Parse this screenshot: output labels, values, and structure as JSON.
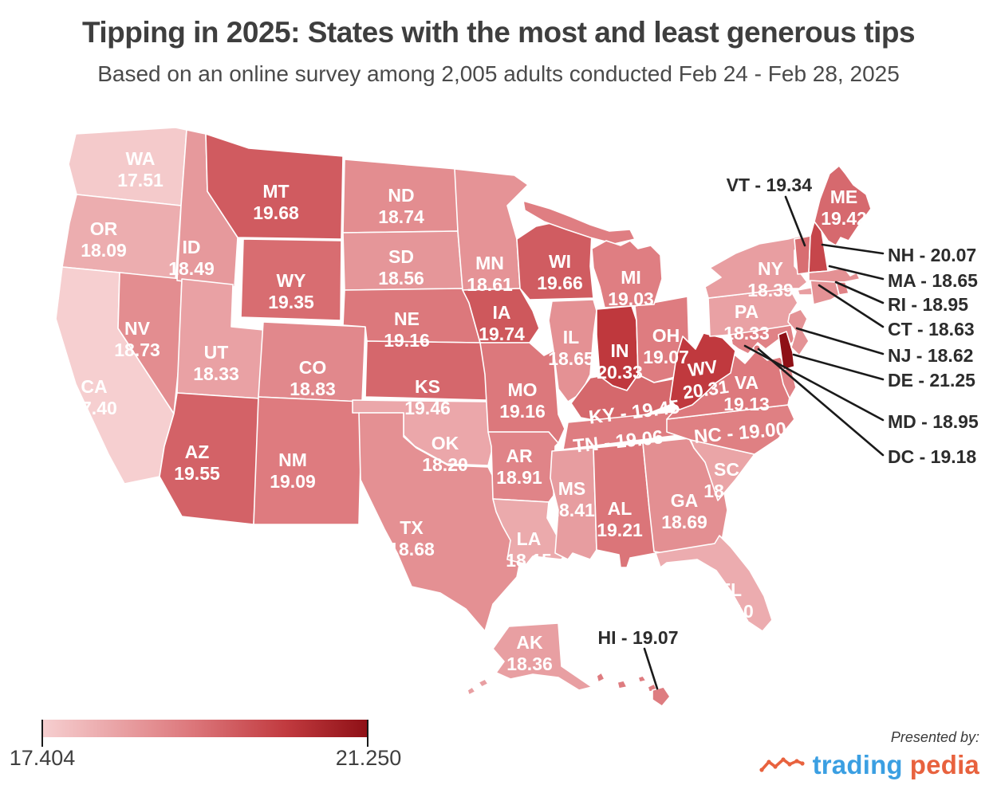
{
  "title": "Tipping in 2025: States with the most and least generous tips",
  "subtitle": "Based on an online survey among 2,005 adults conducted Feb 24 - Feb 28, 2025",
  "legend": {
    "min_label": "17.404",
    "max_label": "21.250"
  },
  "footer": {
    "presented_by": "Presented by:",
    "brand_part1": "trading",
    "brand_part2": "pedia",
    "brand_part1_color": "#3b9fe2",
    "brand_part2_color": "#e8623e",
    "brand_icon": "line-chart-zigzag-icon",
    "brand_icon_color": "#e8623e"
  },
  "colors": {
    "title_text": "#3e3e3e",
    "subtitle_text": "#4a4a4a",
    "state_border": "#ffffff",
    "state_label_text": "#ffffff",
    "callout_text": "#2c2c2c",
    "callout_line": "#1a1a1a",
    "scale_stops": [
      {
        "t": 0.0,
        "color": "#f6cfd0"
      },
      {
        "t": 0.45,
        "color": "#dd797d"
      },
      {
        "t": 0.75,
        "color": "#c13a3f"
      },
      {
        "t": 1.0,
        "color": "#8e1016"
      }
    ]
  },
  "chart_data": {
    "type": "choropleth",
    "region": "United States",
    "metric": "Average tip percentage",
    "title": "Tipping in 2025: States with the most and least generous tips",
    "subtitle": "Based on an online survey among 2,005 adults conducted Feb 24 - Feb 28, 2025",
    "scale": {
      "min": 17.404,
      "max": 21.25
    },
    "legend_min_label": "17.404",
    "legend_max_label": "21.250",
    "states": [
      {
        "abbr": "WA",
        "value": 17.51
      },
      {
        "abbr": "OR",
        "value": 18.09
      },
      {
        "abbr": "CA",
        "value": 17.4
      },
      {
        "abbr": "NV",
        "value": 18.73
      },
      {
        "abbr": "ID",
        "value": 18.49
      },
      {
        "abbr": "MT",
        "value": 19.68
      },
      {
        "abbr": "WY",
        "value": 19.35
      },
      {
        "abbr": "UT",
        "value": 18.33
      },
      {
        "abbr": "CO",
        "value": 18.83
      },
      {
        "abbr": "AZ",
        "value": 19.55
      },
      {
        "abbr": "NM",
        "value": 19.09
      },
      {
        "abbr": "ND",
        "value": 18.74
      },
      {
        "abbr": "SD",
        "value": 18.56
      },
      {
        "abbr": "NE",
        "value": 19.16
      },
      {
        "abbr": "KS",
        "value": 19.46
      },
      {
        "abbr": "OK",
        "value": 18.2
      },
      {
        "abbr": "TX",
        "value": 18.68
      },
      {
        "abbr": "MN",
        "value": 18.61
      },
      {
        "abbr": "IA",
        "value": 19.74
      },
      {
        "abbr": "MO",
        "value": 19.16
      },
      {
        "abbr": "AR",
        "value": 18.91
      },
      {
        "abbr": "LA",
        "value": 18.15
      },
      {
        "abbr": "WI",
        "value": 19.66
      },
      {
        "abbr": "IL",
        "value": 18.65
      },
      {
        "abbr": "IN",
        "value": 20.33
      },
      {
        "abbr": "OH",
        "value": 19.07
      },
      {
        "abbr": "MI",
        "value": 19.03
      },
      {
        "abbr": "KY",
        "value": 19.45
      },
      {
        "abbr": "TN",
        "value": 19.06
      },
      {
        "abbr": "MS",
        "value": 18.41
      },
      {
        "abbr": "AL",
        "value": 19.21
      },
      {
        "abbr": "GA",
        "value": 18.69
      },
      {
        "abbr": "SC",
        "value": 18.25
      },
      {
        "abbr": "NC",
        "value": 19.0
      },
      {
        "abbr": "VA",
        "value": 19.13
      },
      {
        "abbr": "WV",
        "value": 20.31
      },
      {
        "abbr": "FL",
        "value": 18.1
      },
      {
        "abbr": "PA",
        "value": 18.33
      },
      {
        "abbr": "NY",
        "value": 18.39
      },
      {
        "abbr": "ME",
        "value": 19.42
      },
      {
        "abbr": "VT",
        "value": 19.34
      },
      {
        "abbr": "NH",
        "value": 20.07
      },
      {
        "abbr": "MA",
        "value": 18.65
      },
      {
        "abbr": "RI",
        "value": 18.95
      },
      {
        "abbr": "CT",
        "value": 18.63
      },
      {
        "abbr": "NJ",
        "value": 18.62
      },
      {
        "abbr": "DE",
        "value": 21.25
      },
      {
        "abbr": "MD",
        "value": 18.95
      },
      {
        "abbr": "DC",
        "value": 19.18
      },
      {
        "abbr": "AK",
        "value": 18.36
      },
      {
        "abbr": "HI",
        "value": 19.07
      }
    ]
  }
}
